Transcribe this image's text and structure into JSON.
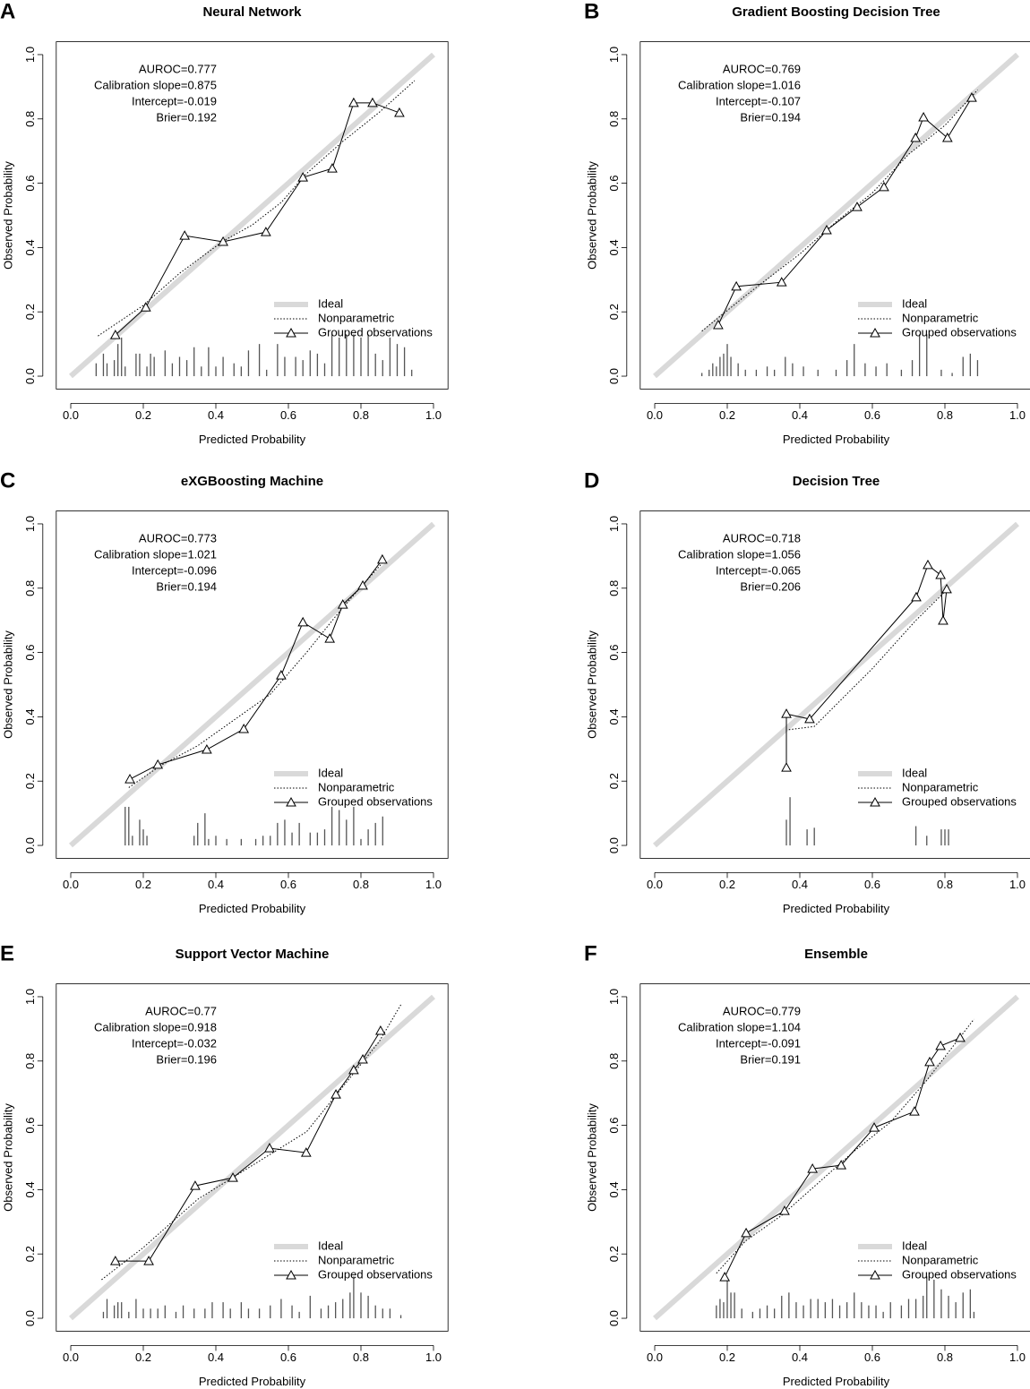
{
  "chart_data": [
    {
      "type": "calibration",
      "panel": "A",
      "title": "Neural Network",
      "xlabel": "Predicted Probability",
      "ylabel": "Observed Probability",
      "annotations": [
        "AUROC=0.777",
        "Calibration slope=0.875",
        "Intercept=-0.019",
        "Brier=0.192"
      ],
      "xlim": [
        -0.04,
        1.04
      ],
      "ylim": [
        -0.04,
        1.04
      ],
      "xticks": [
        {
          "value": 0,
          "label": "0.0"
        },
        0.2,
        0.4,
        0.6,
        0.8,
        {
          "value": 1,
          "label": "1.0"
        }
      ],
      "yticks": [
        {
          "value": 0,
          "label": "0.0"
        },
        0.2,
        0.4,
        0.6,
        0.8,
        {
          "value": 1,
          "label": "1.0"
        }
      ],
      "legend": "bottomright",
      "series": [
        {
          "name": "Ideal",
          "color": "#d9d9d9",
          "line": "thick",
          "x": [
            0,
            1
          ],
          "values": [
            0,
            1
          ]
        },
        {
          "name": "Nonparametric",
          "color": "#000000",
          "line": "dotted",
          "x": [
            0.075,
            0.2,
            0.3,
            0.42,
            0.5,
            0.58,
            0.65,
            0.75,
            0.85,
            0.948
          ],
          "values": [
            0.125,
            0.22,
            0.32,
            0.42,
            0.47,
            0.54,
            0.63,
            0.73,
            0.82,
            0.919
          ]
        },
        {
          "name": "Grouped observations",
          "color": "#000000",
          "line": "solid",
          "marker": "triangle",
          "x": [
            0.123,
            0.207,
            0.314,
            0.42,
            0.538,
            0.64,
            0.721,
            0.78,
            0.832,
            0.906
          ],
          "values": [
            0.128,
            0.214,
            0.437,
            0.418,
            0.448,
            0.618,
            0.646,
            0.85,
            0.85,
            0.819
          ]
        }
      ],
      "rug": {
        "x": [
          0.07,
          0.09,
          0.1,
          0.12,
          0.13,
          0.14,
          0.15,
          0.18,
          0.19,
          0.21,
          0.22,
          0.23,
          0.26,
          0.28,
          0.3,
          0.32,
          0.34,
          0.36,
          0.38,
          0.4,
          0.42,
          0.45,
          0.47,
          0.49,
          0.52,
          0.54,
          0.57,
          0.59,
          0.62,
          0.64,
          0.66,
          0.68,
          0.7,
          0.72,
          0.74,
          0.76,
          0.78,
          0.8,
          0.82,
          0.84,
          0.86,
          0.88,
          0.9,
          0.92,
          0.94
        ],
        "values": [
          0.04,
          0.07,
          0.04,
          0.05,
          0.1,
          0.12,
          0.03,
          0.07,
          0.07,
          0.03,
          0.07,
          0.06,
          0.08,
          0.04,
          0.06,
          0.05,
          0.09,
          0.03,
          0.09,
          0.03,
          0.06,
          0.04,
          0.03,
          0.08,
          0.1,
          0.02,
          0.1,
          0.06,
          0.06,
          0.05,
          0.08,
          0.07,
          0.04,
          0.13,
          0.12,
          0.13,
          0.13,
          0.12,
          0.13,
          0.07,
          0.05,
          0.12,
          0.1,
          0.09,
          0.02
        ]
      }
    },
    {
      "type": "calibration",
      "panel": "B",
      "title": "Gradient Boosting Decision Tree",
      "xlabel": "Predicted Probability",
      "ylabel": "Observed Probability",
      "annotations": [
        "AUROC=0.769",
        "Calibration slope=1.016",
        "Intercept=-0.107",
        "Brier=0.194"
      ],
      "xlim": [
        -0.04,
        1.04
      ],
      "ylim": [
        -0.04,
        1.04
      ],
      "xticks": [
        {
          "value": 0,
          "label": "0.0"
        },
        0.2,
        0.4,
        0.6,
        0.8,
        {
          "value": 1,
          "label": "1.0"
        }
      ],
      "yticks": [
        {
          "value": 0,
          "label": "0.0"
        },
        0.2,
        0.4,
        0.6,
        0.8,
        {
          "value": 1,
          "label": "1.0"
        }
      ],
      "legend": "bottomright",
      "series": [
        {
          "name": "Ideal",
          "color": "#d9d9d9",
          "line": "thick",
          "x": [
            0,
            1
          ],
          "values": [
            0,
            1
          ]
        },
        {
          "name": "Nonparametric",
          "color": "#000000",
          "line": "dotted",
          "x": [
            0.13,
            0.25,
            0.4,
            0.5,
            0.6,
            0.7,
            0.8,
            0.89
          ],
          "values": [
            0.14,
            0.25,
            0.38,
            0.48,
            0.57,
            0.69,
            0.78,
            0.89
          ]
        },
        {
          "name": "Grouped observations",
          "color": "#000000",
          "line": "solid",
          "marker": "triangle",
          "x": [
            0.175,
            0.225,
            0.35,
            0.474,
            0.558,
            0.632,
            0.719,
            0.741,
            0.807,
            0.874
          ],
          "values": [
            0.159,
            0.279,
            0.292,
            0.454,
            0.526,
            0.588,
            0.741,
            0.805,
            0.741,
            0.866
          ]
        }
      ],
      "rug": {
        "x": [
          0.13,
          0.15,
          0.16,
          0.17,
          0.18,
          0.19,
          0.2,
          0.21,
          0.23,
          0.25,
          0.28,
          0.31,
          0.33,
          0.36,
          0.38,
          0.41,
          0.45,
          0.5,
          0.53,
          0.55,
          0.58,
          0.61,
          0.64,
          0.68,
          0.71,
          0.73,
          0.75,
          0.79,
          0.82,
          0.85,
          0.87,
          0.89
        ],
        "values": [
          0.01,
          0.02,
          0.04,
          0.03,
          0.06,
          0.07,
          0.1,
          0.06,
          0.04,
          0.02,
          0.02,
          0.03,
          0.02,
          0.06,
          0.04,
          0.03,
          0.02,
          0.02,
          0.05,
          0.1,
          0.04,
          0.03,
          0.04,
          0.02,
          0.05,
          0.13,
          0.13,
          0.02,
          0.01,
          0.06,
          0.07,
          0.05
        ]
      }
    },
    {
      "type": "calibration",
      "panel": "C",
      "title": "eXGBoosting Machine",
      "xlabel": "Predicted Probability",
      "ylabel": "Observed Probability",
      "annotations": [
        "AUROC=0.773",
        "Calibration slope=1.021",
        "Intercept=-0.096",
        "Brier=0.194"
      ],
      "xlim": [
        -0.04,
        1.04
      ],
      "ylim": [
        -0.04,
        1.04
      ],
      "xticks": [
        {
          "value": 0,
          "label": "0.0"
        },
        0.2,
        0.4,
        0.6,
        0.8,
        {
          "value": 1,
          "label": "1.0"
        }
      ],
      "yticks": [
        {
          "value": 0,
          "label": "0.0"
        },
        0.2,
        0.4,
        0.6,
        0.8,
        {
          "value": 1,
          "label": "1.0"
        }
      ],
      "legend": "bottomright",
      "series": [
        {
          "name": "Ideal",
          "color": "#d9d9d9",
          "line": "thick",
          "x": [
            0,
            1
          ],
          "values": [
            0,
            1
          ]
        },
        {
          "name": "Nonparametric",
          "color": "#000000",
          "line": "dotted",
          "x": [
            0.16,
            0.25,
            0.35,
            0.45,
            0.55,
            0.65,
            0.75,
            0.86
          ],
          "values": [
            0.18,
            0.25,
            0.31,
            0.39,
            0.47,
            0.6,
            0.74,
            0.88
          ]
        },
        {
          "name": "Grouped observations",
          "color": "#000000",
          "line": "solid",
          "marker": "triangle",
          "x": [
            0.163,
            0.24,
            0.375,
            0.477,
            0.58,
            0.64,
            0.714,
            0.75,
            0.805,
            0.859
          ],
          "values": [
            0.206,
            0.251,
            0.298,
            0.362,
            0.529,
            0.694,
            0.643,
            0.749,
            0.808,
            0.889
          ]
        }
      ],
      "rug": {
        "x": [
          0.15,
          0.16,
          0.17,
          0.19,
          0.2,
          0.21,
          0.34,
          0.35,
          0.37,
          0.38,
          0.4,
          0.43,
          0.47,
          0.51,
          0.53,
          0.55,
          0.57,
          0.59,
          0.61,
          0.63,
          0.66,
          0.68,
          0.7,
          0.72,
          0.74,
          0.76,
          0.78,
          0.8,
          0.82,
          0.84,
          0.86
        ],
        "values": [
          0.12,
          0.12,
          0.03,
          0.08,
          0.05,
          0.03,
          0.03,
          0.07,
          0.1,
          0.02,
          0.03,
          0.02,
          0.02,
          0.02,
          0.03,
          0.03,
          0.07,
          0.08,
          0.04,
          0.07,
          0.04,
          0.04,
          0.05,
          0.12,
          0.11,
          0.08,
          0.12,
          0.02,
          0.05,
          0.07,
          0.09
        ]
      }
    },
    {
      "type": "calibration",
      "panel": "D",
      "title": "Decision Tree",
      "xlabel": "Predicted Probability",
      "ylabel": "Observed Probability",
      "annotations": [
        "AUROC=0.718",
        "Calibration slope=1.056",
        "Intercept=-0.065",
        "Brier=0.206"
      ],
      "xlim": [
        -0.04,
        1.04
      ],
      "ylim": [
        -0.04,
        1.04
      ],
      "xticks": [
        {
          "value": 0,
          "label": "0.0"
        },
        0.2,
        0.4,
        0.6,
        0.8,
        {
          "value": 1,
          "label": "1.0"
        }
      ],
      "yticks": [
        {
          "value": 0,
          "label": "0.0"
        },
        0.2,
        0.4,
        0.6,
        0.8,
        {
          "value": 1,
          "label": "1.0"
        }
      ],
      "legend": "bottomright",
      "series": [
        {
          "name": "Ideal",
          "color": "#d9d9d9",
          "line": "thick",
          "x": [
            0,
            1
          ],
          "values": [
            0,
            1
          ]
        },
        {
          "name": "Nonparametric",
          "color": "#000000",
          "line": "dotted",
          "x": [
            0.37,
            0.44,
            0.6,
            0.72,
            0.81
          ],
          "values": [
            0.36,
            0.37,
            0.55,
            0.7,
            0.8
          ]
        },
        {
          "name": "Grouped observations",
          "color": "#000000",
          "line": "solid",
          "marker": "triangle",
          "x": [
            0.363,
            0.363,
            0.427,
            0.721,
            0.753,
            0.788,
            0.795,
            0.805
          ],
          "values": [
            0.242,
            0.409,
            0.393,
            0.772,
            0.872,
            0.841,
            0.699,
            0.797
          ]
        }
      ],
      "rug": {
        "x": [
          0.363,
          0.373,
          0.42,
          0.44,
          0.72,
          0.75,
          0.79,
          0.8,
          0.81
        ],
        "values": [
          0.08,
          0.15,
          0.05,
          0.055,
          0.06,
          0.03,
          0.05,
          0.05,
          0.05
        ]
      }
    },
    {
      "type": "calibration",
      "panel": "E",
      "title": "Support Vector Machine",
      "xlabel": "Predicted Probability",
      "ylabel": "Observed Probability",
      "annotations": [
        "AUROC=0.77",
        "Calibration slope=0.918",
        "Intercept=-0.032",
        "Brier=0.196"
      ],
      "xlim": [
        -0.04,
        1.04
      ],
      "ylim": [
        -0.04,
        1.04
      ],
      "xticks": [
        {
          "value": 0,
          "label": "0.0"
        },
        0.2,
        0.4,
        0.6,
        0.8,
        {
          "value": 1,
          "label": "1.0"
        }
      ],
      "yticks": [
        {
          "value": 0,
          "label": "0.0"
        },
        0.2,
        0.4,
        0.6,
        0.8,
        {
          "value": 1,
          "label": "1.0"
        }
      ],
      "legend": "bottomright",
      "series": [
        {
          "name": "Ideal",
          "color": "#d9d9d9",
          "line": "thick",
          "x": [
            0,
            1
          ],
          "values": [
            0,
            1
          ]
        },
        {
          "name": "Nonparametric",
          "color": "#000000",
          "line": "dotted",
          "x": [
            0.085,
            0.2,
            0.35,
            0.45,
            0.55,
            0.65,
            0.75,
            0.85,
            0.91
          ],
          "values": [
            0.12,
            0.22,
            0.37,
            0.44,
            0.51,
            0.58,
            0.72,
            0.86,
            0.975
          ]
        },
        {
          "name": "Grouped observations",
          "color": "#000000",
          "line": "solid",
          "marker": "triangle",
          "x": [
            0.123,
            0.215,
            0.343,
            0.447,
            0.548,
            0.649,
            0.731,
            0.78,
            0.805,
            0.854
          ],
          "values": [
            0.178,
            0.178,
            0.412,
            0.437,
            0.529,
            0.515,
            0.696,
            0.772,
            0.805,
            0.894
          ]
        }
      ],
      "rug": {
        "x": [
          0.09,
          0.1,
          0.12,
          0.13,
          0.14,
          0.16,
          0.18,
          0.2,
          0.22,
          0.24,
          0.26,
          0.29,
          0.31,
          0.34,
          0.37,
          0.39,
          0.42,
          0.44,
          0.47,
          0.49,
          0.52,
          0.55,
          0.58,
          0.61,
          0.63,
          0.66,
          0.69,
          0.71,
          0.73,
          0.75,
          0.77,
          0.78,
          0.8,
          0.82,
          0.84,
          0.86,
          0.88,
          0.91
        ],
        "values": [
          0.02,
          0.06,
          0.04,
          0.05,
          0.05,
          0.02,
          0.06,
          0.03,
          0.03,
          0.03,
          0.04,
          0.02,
          0.04,
          0.03,
          0.03,
          0.05,
          0.05,
          0.03,
          0.05,
          0.03,
          0.03,
          0.04,
          0.06,
          0.04,
          0.02,
          0.07,
          0.03,
          0.04,
          0.05,
          0.06,
          0.08,
          0.13,
          0.08,
          0.07,
          0.04,
          0.03,
          0.03,
          0.01
        ]
      }
    },
    {
      "type": "calibration",
      "panel": "F",
      "title": "Ensemble",
      "xlabel": "Predicted Probability",
      "ylabel": "Observed Probability",
      "annotations": [
        "AUROC=0.779",
        "Calibration slope=1.104",
        "Intercept=-0.091",
        "Brier=0.191"
      ],
      "xlim": [
        -0.04,
        1.04
      ],
      "ylim": [
        -0.04,
        1.04
      ],
      "xticks": [
        {
          "value": 0,
          "label": "0.0"
        },
        0.2,
        0.4,
        0.6,
        0.8,
        {
          "value": 1,
          "label": "1.0"
        }
      ],
      "yticks": [
        {
          "value": 0,
          "label": "0.0"
        },
        0.2,
        0.4,
        0.6,
        0.8,
        {
          "value": 1,
          "label": "1.0"
        }
      ],
      "legend": "bottomright",
      "series": [
        {
          "name": "Ideal",
          "color": "#d9d9d9",
          "line": "thick",
          "x": [
            0,
            1
          ],
          "values": [
            0,
            1
          ]
        },
        {
          "name": "Nonparametric",
          "color": "#000000",
          "line": "dotted",
          "x": [
            0.17,
            0.25,
            0.35,
            0.45,
            0.55,
            0.65,
            0.75,
            0.88
          ],
          "values": [
            0.14,
            0.24,
            0.32,
            0.42,
            0.52,
            0.61,
            0.74,
            0.93
          ]
        },
        {
          "name": "Grouped observations",
          "color": "#000000",
          "line": "solid",
          "marker": "triangle",
          "x": [
            0.193,
            0.252,
            0.358,
            0.435,
            0.514,
            0.605,
            0.716,
            0.758,
            0.788,
            0.842
          ],
          "values": [
            0.128,
            0.265,
            0.334,
            0.465,
            0.476,
            0.593,
            0.643,
            0.797,
            0.847,
            0.872
          ]
        }
      ],
      "rug": {
        "x": [
          0.17,
          0.18,
          0.19,
          0.2,
          0.21,
          0.22,
          0.24,
          0.27,
          0.29,
          0.31,
          0.33,
          0.35,
          0.37,
          0.39,
          0.41,
          0.43,
          0.45,
          0.47,
          0.49,
          0.51,
          0.53,
          0.55,
          0.57,
          0.59,
          0.61,
          0.63,
          0.65,
          0.68,
          0.7,
          0.72,
          0.74,
          0.75,
          0.77,
          0.79,
          0.81,
          0.83,
          0.85,
          0.87,
          0.88
        ],
        "values": [
          0.04,
          0.06,
          0.05,
          0.12,
          0.08,
          0.08,
          0.03,
          0.02,
          0.03,
          0.04,
          0.03,
          0.07,
          0.08,
          0.05,
          0.04,
          0.06,
          0.06,
          0.05,
          0.06,
          0.04,
          0.05,
          0.08,
          0.05,
          0.04,
          0.04,
          0.02,
          0.05,
          0.04,
          0.06,
          0.06,
          0.07,
          0.13,
          0.12,
          0.09,
          0.07,
          0.05,
          0.08,
          0.09,
          0.02
        ]
      }
    }
  ]
}
